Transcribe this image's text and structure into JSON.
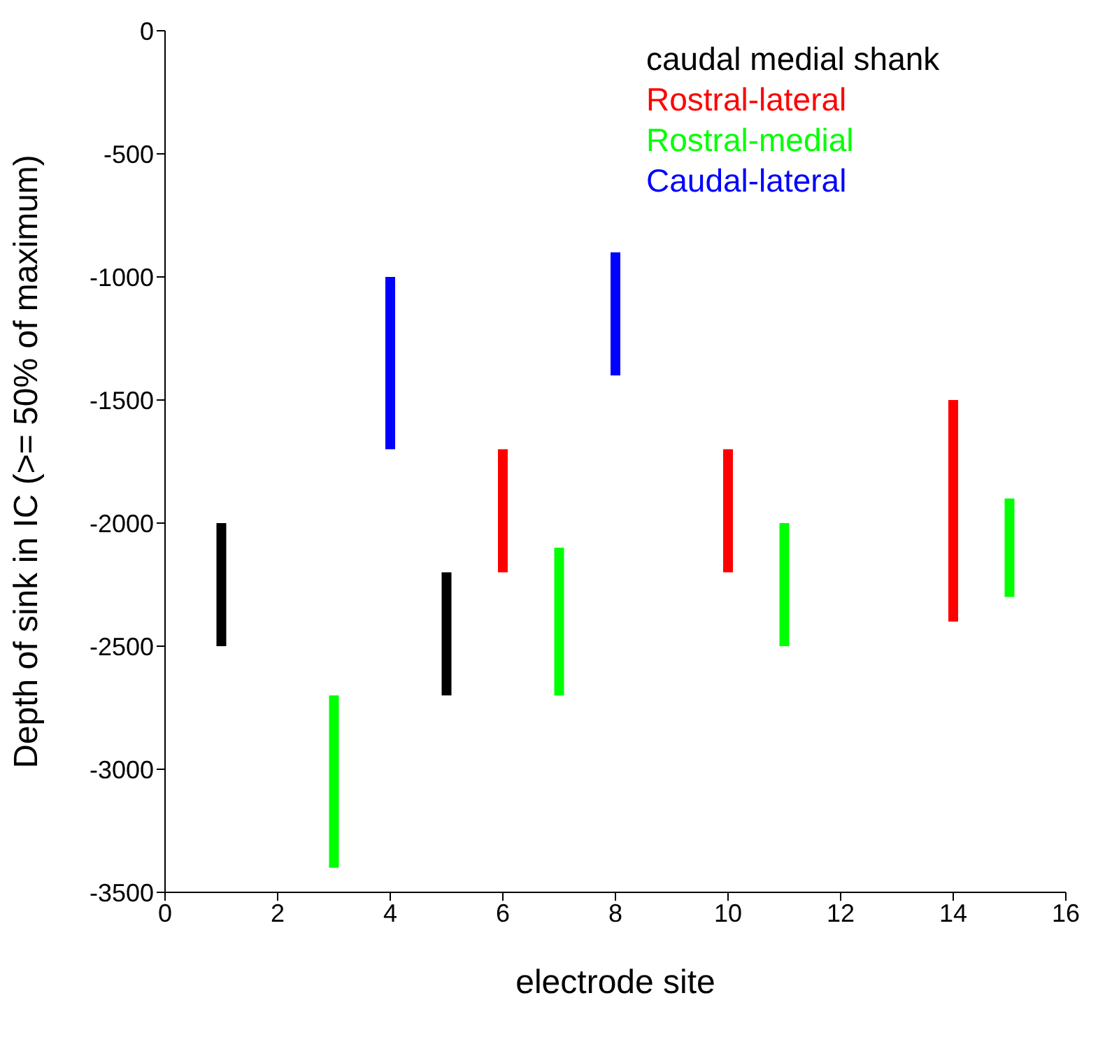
{
  "chart_data": {
    "type": "bar",
    "xlabel": "electrode site",
    "ylabel": "Depth of sink in IC (>= 50% of maximum)",
    "xlim": [
      0,
      16
    ],
    "xticks": [
      0,
      2,
      4,
      6,
      8,
      10,
      12,
      14,
      16
    ],
    "ylim": [
      -3500,
      0
    ],
    "yticks": [
      -3500,
      -3000,
      -2500,
      -2000,
      -1500,
      -1000,
      -500,
      0
    ],
    "legend": "top right",
    "grid": false,
    "series": [
      {
        "name": "caudal medial shank",
        "color": "#000000",
        "x": [
          1,
          5
        ],
        "base": [
          -2500,
          -2700
        ],
        "values": [
          500,
          500
        ]
      },
      {
        "name": "Rostral-lateral",
        "color": "#ff0000",
        "x": [
          6,
          10,
          14
        ],
        "base": [
          -2200,
          -2200,
          -2400
        ],
        "values": [
          500,
          500,
          900
        ]
      },
      {
        "name": "Rostral-medial",
        "color": "#00ff00",
        "x": [
          3,
          7,
          11,
          15
        ],
        "base": [
          -3400,
          -2700,
          -2500,
          -2300
        ],
        "values": [
          700,
          600,
          500,
          400
        ]
      },
      {
        "name": "Caudal-lateral",
        "color": "#0000ff",
        "x": [
          4,
          8
        ],
        "base": [
          -1700,
          -1400
        ],
        "values": [
          700,
          500
        ]
      }
    ]
  }
}
